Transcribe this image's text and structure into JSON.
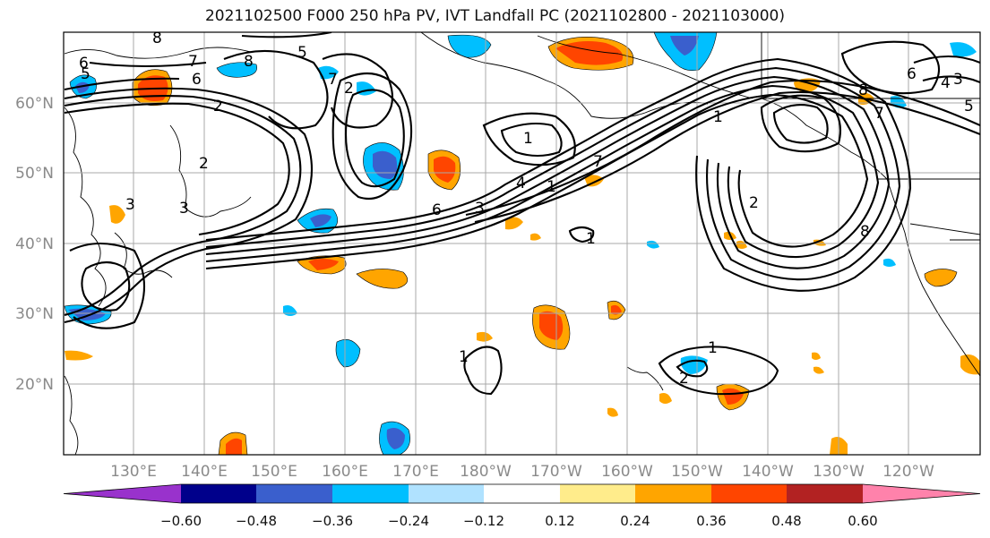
{
  "title": "2021102500 F000 250 hPa PV, IVT Landfall PC (2021102800 - 2021103000)",
  "lat_ticks": [
    "60°N",
    "50°N",
    "40°N",
    "30°N",
    "20°N"
  ],
  "lon_ticks": [
    "130°E",
    "140°E",
    "150°E",
    "160°E",
    "170°E",
    "180°W",
    "170°W",
    "160°W",
    "150°W",
    "140°W",
    "130°W",
    "120°W"
  ],
  "colorbar": {
    "colors": [
      "#9932cc",
      "#00008b",
      "#3a5fcd",
      "#00bfff",
      "#b0e2ff",
      "#ffffff",
      "#ffec8b",
      "#ffa500",
      "#ff4500",
      "#b22222",
      "#ff82ab"
    ],
    "labels": [
      "−0.60",
      "−0.48",
      "−0.36",
      "−0.24",
      "−0.12",
      "0.12",
      "0.24",
      "0.36",
      "0.48",
      "0.60"
    ]
  },
  "contour_labels": [
    "8",
    "7",
    "6",
    "2",
    "5",
    "7",
    "8",
    "6",
    "5",
    "2",
    "2",
    "3",
    "3",
    "6",
    "3",
    "4",
    "1",
    "7",
    "1",
    "1",
    "8",
    "5",
    "6",
    "4",
    "3",
    "7",
    "1",
    "2",
    "8",
    "1",
    "1",
    "2"
  ],
  "colors": {
    "grid": "#a9a9a9",
    "contour": "#000000",
    "tick_text": "#8a8a8a"
  }
}
